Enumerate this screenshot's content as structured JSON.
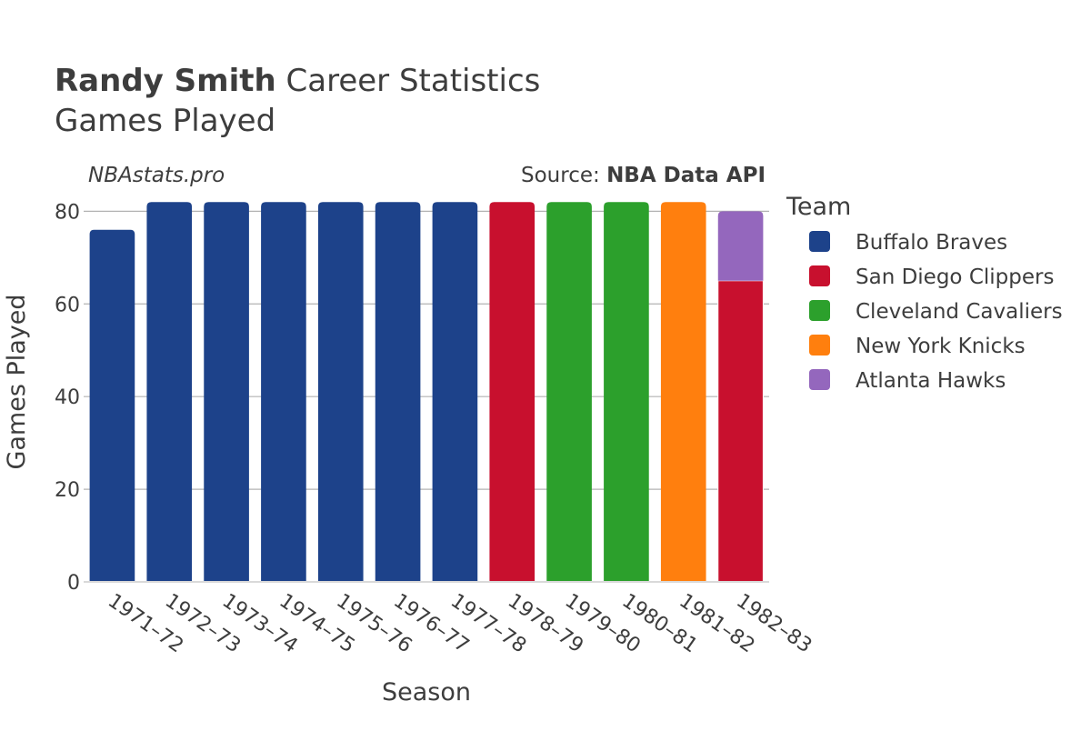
{
  "title": {
    "player_name": "Randy Smith",
    "title_rest": " Career Statistics",
    "subtitle": "Games Played"
  },
  "watermark": "NBAstats.pro",
  "source": {
    "prefix": "Source: ",
    "name": "NBA Data API"
  },
  "legend": {
    "title": "Team",
    "items": [
      {
        "label": "Buffalo Braves",
        "color": "#1d428a"
      },
      {
        "label": "San Diego Clippers",
        "color": "#c8102e"
      },
      {
        "label": "Cleveland Cavaliers",
        "color": "#2ca02c"
      },
      {
        "label": "New York Knicks",
        "color": "#ff7f0e"
      },
      {
        "label": "Atlanta Hawks",
        "color": "#9467bd"
      }
    ]
  },
  "chart_data": {
    "type": "bar",
    "stacked": true,
    "xlabel": "Season",
    "ylabel": "Games Played",
    "ylim": [
      0,
      84
    ],
    "yticks": [
      0,
      20,
      40,
      60,
      80
    ],
    "grid": true,
    "legend_position": "right",
    "categories": [
      "1971–72",
      "1972–73",
      "1973–74",
      "1974–75",
      "1975–76",
      "1976–77",
      "1977–78",
      "1978–79",
      "1979–80",
      "1980–81",
      "1981–82",
      "1982–83"
    ],
    "series": [
      {
        "name": "Buffalo Braves",
        "color": "#1d428a",
        "values": [
          76,
          82,
          82,
          82,
          82,
          82,
          82,
          0,
          0,
          0,
          0,
          0
        ]
      },
      {
        "name": "San Diego Clippers",
        "color": "#c8102e",
        "values": [
          0,
          0,
          0,
          0,
          0,
          0,
          0,
          82,
          0,
          0,
          0,
          65
        ]
      },
      {
        "name": "Cleveland Cavaliers",
        "color": "#2ca02c",
        "values": [
          0,
          0,
          0,
          0,
          0,
          0,
          0,
          0,
          82,
          82,
          0,
          0
        ]
      },
      {
        "name": "New York Knicks",
        "color": "#ff7f0e",
        "values": [
          0,
          0,
          0,
          0,
          0,
          0,
          0,
          0,
          0,
          0,
          82,
          0
        ]
      },
      {
        "name": "Atlanta Hawks",
        "color": "#9467bd",
        "values": [
          0,
          0,
          0,
          0,
          0,
          0,
          0,
          0,
          0,
          0,
          0,
          15
        ]
      }
    ]
  }
}
